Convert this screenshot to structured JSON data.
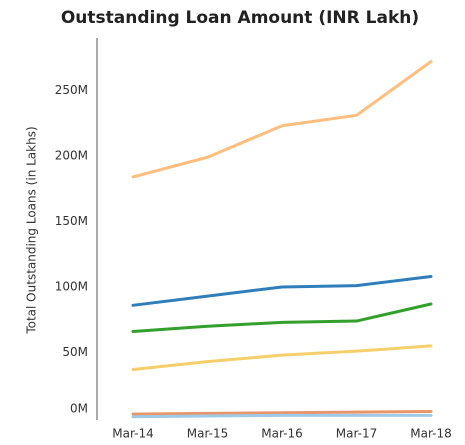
{
  "chart_data": {
    "type": "line",
    "title": "Outstanding Loan Amount (INR Lakh)",
    "y_label": "Total Outstanding Loans (in Lakhs)",
    "categories": [
      "Mar-14",
      "Mar-15",
      "Mar-16",
      "Mar-17",
      "Mar-18"
    ],
    "series": [
      {
        "color": "#ffbe7d",
        "values": [
          184,
          199,
          223,
          231,
          272
        ]
      },
      {
        "color": "#2f7ebc",
        "values": [
          86,
          93,
          100,
          101,
          108
        ]
      },
      {
        "color": "#33a02c",
        "values": [
          66,
          70,
          73,
          74,
          87
        ]
      },
      {
        "color": "#f5d06a",
        "values": [
          37,
          43,
          48,
          51,
          55
        ]
      },
      {
        "color": "#e8956b",
        "values": [
          3,
          3.5,
          4,
          4.5,
          5
        ]
      },
      {
        "color": "#a0cbe8",
        "values": [
          1,
          1.5,
          2,
          2,
          2
        ]
      }
    ],
    "ylim": [
      0,
      290
    ],
    "yticks": [
      {
        "value": 0,
        "label": "0M"
      },
      {
        "value": 50,
        "label": "50M"
      },
      {
        "value": 100,
        "label": "100M"
      },
      {
        "value": 150,
        "label": "150M"
      },
      {
        "value": 200,
        "label": "200M"
      },
      {
        "value": 250,
        "label": "250M"
      }
    ],
    "grid": false
  }
}
